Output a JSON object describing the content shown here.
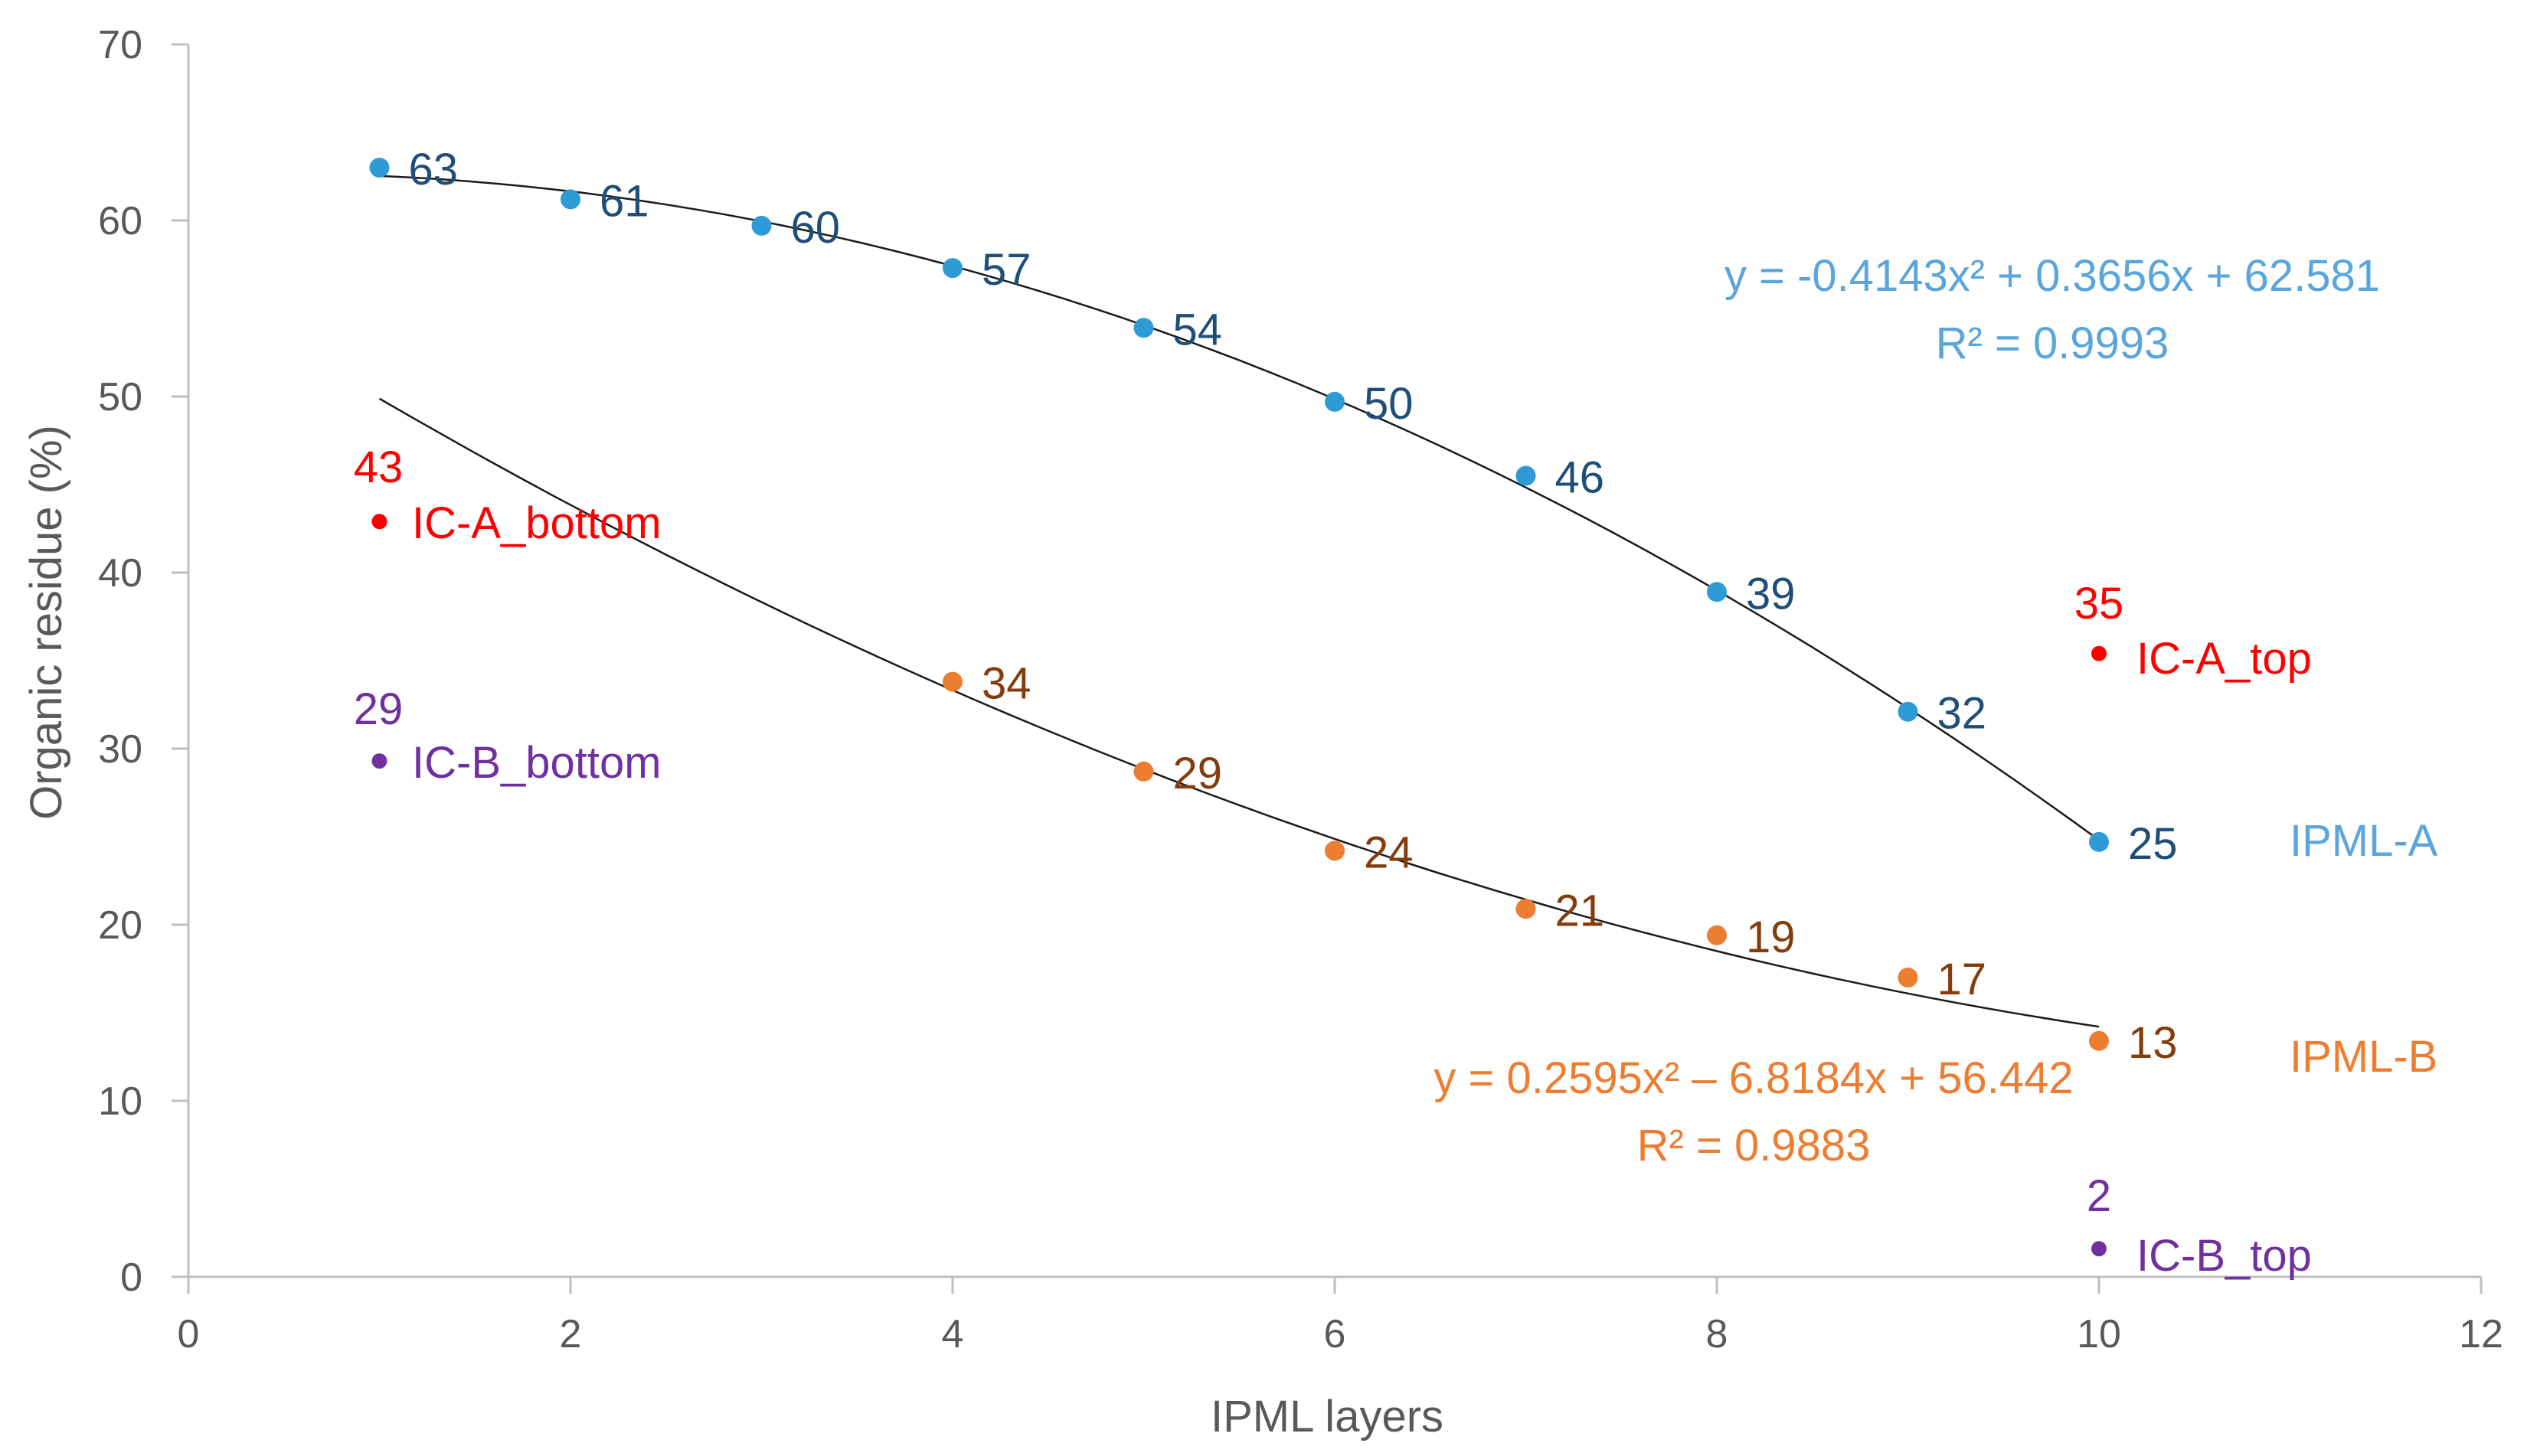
{
  "chart_data": {
    "type": "scatter",
    "title": "",
    "xlabel": "IPML layers",
    "ylabel": "Organic residue (%)",
    "xlim": [
      0,
      12
    ],
    "ylim": [
      0,
      70
    ],
    "x_ticks": [
      0,
      2,
      4,
      6,
      8,
      10,
      12
    ],
    "y_ticks": [
      0,
      10,
      20,
      30,
      40,
      50,
      60,
      70
    ],
    "x_tick_labels": [
      "0",
      "2",
      "4",
      "6",
      "8",
      "10",
      "12"
    ],
    "y_tick_labels": [
      "0",
      "10",
      "20",
      "30",
      "40",
      "50",
      "60",
      "70"
    ],
    "grid": false,
    "series": [
      {
        "name": "IPML-A",
        "color": "#2e9bd6",
        "label_color": "#1f4e79",
        "name_color": "#5aa5dc",
        "x": [
          1,
          2,
          3,
          4,
          5,
          6,
          7,
          8,
          9,
          10
        ],
        "y": [
          63,
          61.2,
          59.7,
          57.3,
          53.9,
          49.7,
          45.5,
          38.9,
          32.1,
          24.7
        ],
        "labels": [
          "63",
          "61",
          "60",
          "57",
          "54",
          "50",
          "46",
          "39",
          "32",
          "25"
        ],
        "trendline": {
          "type": "polynomial",
          "coefficients": [
            -0.4143,
            0.3656,
            62.581
          ],
          "x_range": [
            1,
            10
          ],
          "equation": "y = -0.4143x² + 0.3656x + 62.581",
          "r_squared": "R² = 0.9993",
          "color": "#5aa5dc"
        }
      },
      {
        "name": "IPML-B",
        "color": "#ed7d31",
        "label_color": "#843c0c",
        "name_color": "#ed7d31",
        "x": [
          4,
          5,
          6,
          7,
          8,
          9,
          10
        ],
        "y": [
          33.8,
          28.7,
          24.2,
          20.9,
          19.4,
          17.0,
          13.4
        ],
        "labels": [
          "34",
          "29",
          "24",
          "21",
          "19",
          "17",
          "13"
        ],
        "trendline": {
          "type": "polynomial",
          "coefficients": [
            0.2595,
            -6.8184,
            56.442
          ],
          "x_range": [
            1,
            10
          ],
          "equation": "y = 0.2595x² – 6.8184x + 56.442",
          "r_squared": "R² = 0.9883",
          "color": "#ed7d31"
        }
      },
      {
        "name": "IC-A_bottom",
        "color": "#ff0000",
        "x": [
          1
        ],
        "y": [
          42.9
        ],
        "labels": [
          "43"
        ]
      },
      {
        "name": "IC-A_top",
        "color": "#ff0000",
        "x": [
          10
        ],
        "y": [
          35.4
        ],
        "labels": [
          "35"
        ]
      },
      {
        "name": "IC-B_bottom",
        "color": "#7030a0",
        "x": [
          1
        ],
        "y": [
          29.3
        ],
        "labels": [
          "29"
        ]
      },
      {
        "name": "IC-B_top",
        "color": "#7030a0",
        "x": [
          10
        ],
        "y": [
          1.6
        ],
        "labels": [
          "2"
        ]
      }
    ]
  }
}
